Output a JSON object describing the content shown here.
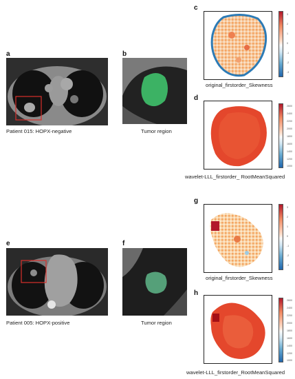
{
  "panels": {
    "a": {
      "letter": "a",
      "caption": "Patient 015: HOPX-negative"
    },
    "b": {
      "letter": "b",
      "caption": "Tumor region"
    },
    "c": {
      "letter": "c",
      "caption": "original_firstorder_Skewness",
      "ticks": [
        "3",
        "2",
        "1",
        "0",
        "-1",
        "-2",
        "-3"
      ]
    },
    "d": {
      "letter": "d",
      "caption": "wavelet-LLL_firstorder_ RootMeanSquared",
      "ticks": [
        "2600",
        "2400",
        "2200",
        "2000",
        "1800",
        "1600",
        "1400",
        "1200",
        "1000"
      ]
    },
    "e": {
      "letter": "e",
      "caption": "Patient 005: HOPX-positive"
    },
    "f": {
      "letter": "f",
      "caption": "Tumor region"
    },
    "g": {
      "letter": "g",
      "caption": "original_firstorder_Skewness",
      "ticks": [
        "3",
        "2",
        "1",
        "0",
        "-1",
        "-2",
        "-3"
      ]
    },
    "h": {
      "letter": "h",
      "caption": "wavelet-LLL_firstorder_RootMeanSquared",
      "ticks": [
        "2600",
        "2400",
        "2200",
        "2000",
        "1800",
        "1600",
        "1400",
        "1200",
        "1000"
      ]
    }
  },
  "colors": {
    "tumor_mask": "#3fbf6a",
    "roi_box": "#d9302c",
    "hot": "#d7301f",
    "warm": "#f4a460",
    "cold": "#2c7bb6"
  }
}
